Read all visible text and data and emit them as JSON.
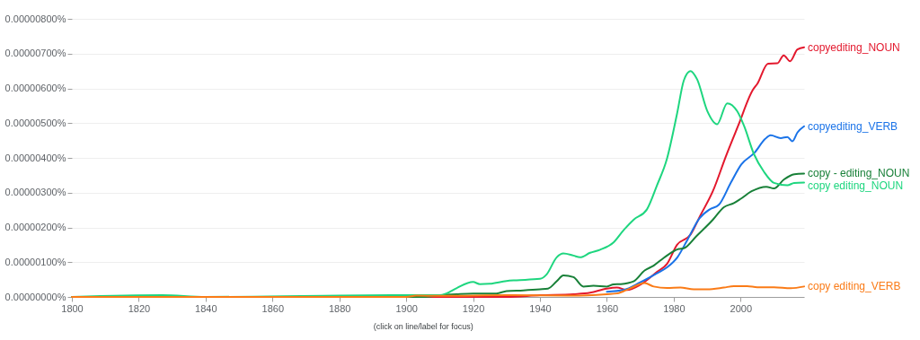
{
  "chart_data": {
    "type": "line",
    "annotations": [
      "(click on line/label for focus)"
    ],
    "xlim": [
      1800,
      2019
    ],
    "xticks": [
      1800,
      1820,
      1840,
      1860,
      1880,
      1900,
      1920,
      1940,
      1960,
      1980,
      2000
    ],
    "ylim": [
      0,
      8e-06
    ],
    "yticks": [
      {
        "value": 0,
        "label": "0.00000000%"
      },
      {
        "value": 1e-06,
        "label": "0.00000100%"
      },
      {
        "value": 2e-06,
        "label": "0.00000200%"
      },
      {
        "value": 3e-06,
        "label": "0.00000300%"
      },
      {
        "value": 4e-06,
        "label": "0.00000400%"
      },
      {
        "value": 5e-06,
        "label": "0.00000500%"
      },
      {
        "value": 6e-06,
        "label": "0.00000600%"
      },
      {
        "value": 7e-06,
        "label": "0.00000700%"
      },
      {
        "value": 8e-06,
        "label": "0.00000800%"
      }
    ],
    "grid": "y",
    "line_style": "solid",
    "marker": "none",
    "series": [
      {
        "name": "copyediting_NOUN",
        "color": "#e3182d",
        "x": [
          1800,
          1900,
          1930,
          1940,
          1950,
          1955,
          1960,
          1963,
          1966,
          1970,
          1975,
          1978,
          1981,
          1985,
          1988,
          1991.7,
          1995.7,
          1999.3,
          2003.7,
          2005,
          2008.2,
          2011,
          2012.9,
          2014.8,
          2017,
          2019
        ],
        "values": [
          0,
          0,
          0,
          5e-08,
          8e-08,
          1.2e-07,
          2.4e-07,
          2.7e-07,
          2e-07,
          3.5e-07,
          7.2e-07,
          9.5e-07,
          1.5e-06,
          1.79e-06,
          2.35e-06,
          3.04e-06,
          4.07e-06,
          4.93e-06,
          5.96e-06,
          6.13e-06,
          6.71e-06,
          6.72e-06,
          6.95e-06,
          6.78e-06,
          7.12e-06,
          7.18e-06
        ]
      },
      {
        "name": "copyediting_VERB",
        "color": "#1a73e8",
        "x": [
          1960,
          1965,
          1970,
          1975,
          1978,
          1981.1,
          1984.2,
          1987.7,
          1990.8,
          1993.5,
          1997.1,
          2000.2,
          2004.2,
          2007.3,
          2009,
          2012,
          2014,
          2015.5,
          2017,
          2019
        ],
        "values": [
          1.5e-07,
          2e-07,
          4.2e-07,
          6.8e-07,
          8.5e-07,
          1.14e-06,
          1.66e-06,
          2.26e-06,
          2.52e-06,
          2.65e-06,
          3.29e-06,
          3.81e-06,
          4.15e-06,
          4.54e-06,
          4.65e-06,
          4.57e-06,
          4.6e-06,
          4.48e-06,
          4.73e-06,
          4.91e-06
        ]
      },
      {
        "name": "copy - editing_NOUN",
        "color": "#188038",
        "x": [
          1800,
          1900,
          1905,
          1910,
          1915,
          1920,
          1927,
          1930,
          1935,
          1940,
          1942.4,
          1945,
          1947,
          1950,
          1953,
          1956,
          1960,
          1962,
          1964.2,
          1968,
          1971.3,
          1974,
          1977.1,
          1981.5,
          1983,
          1986.8,
          1991.7,
          1995,
          1998,
          2000,
          2003.3,
          2007.7,
          2010,
          2013,
          2016.1,
          2019
        ],
        "values": [
          0,
          0,
          0,
          5e-08,
          8e-08,
          1e-07,
          1e-07,
          1.7e-07,
          1.9e-07,
          2.2e-07,
          2.4e-07,
          4.5e-07,
          6.2e-07,
          5.7e-07,
          3e-07,
          3.2e-07,
          3e-07,
          3.6e-07,
          3.7e-07,
          4.5e-07,
          7.6e-07,
          9e-07,
          1.13e-06,
          1.38e-06,
          1.4e-06,
          1.75e-06,
          2.22e-06,
          2.58e-06,
          2.7e-06,
          2.82e-06,
          3.04e-06,
          3.17e-06,
          3.12e-06,
          3.38e-06,
          3.53e-06,
          3.55e-06
        ]
      },
      {
        "name": "copy editing_NOUN",
        "color": "#1ed67f",
        "x": [
          1800,
          1827,
          1840,
          1880,
          1900,
          1910,
          1912,
          1915,
          1920,
          1922,
          1925,
          1930,
          1933,
          1940,
          1942,
          1945,
          1947,
          1950,
          1952,
          1955,
          1958,
          1962,
          1965,
          1968,
          1972,
          1975,
          1978,
          1981,
          1983,
          1985,
          1987,
          1990,
          1993,
          1996,
          1999,
          2001,
          2004,
          2007,
          2010,
          2014,
          2016,
          2019
        ],
        "values": [
          0,
          5e-08,
          0,
          4e-08,
          5e-08,
          5e-08,
          1e-07,
          2.5e-07,
          4.3e-07,
          3.7e-07,
          3.8e-07,
          4.6e-07,
          4.8e-07,
          5.2e-07,
          6.5e-07,
          1.14e-06,
          1.25e-06,
          1.19e-06,
          1.14e-06,
          1.27e-06,
          1.36e-06,
          1.57e-06,
          1.92e-06,
          2.22e-06,
          2.52e-06,
          3.21e-06,
          3.98e-06,
          5.27e-06,
          6.22e-06,
          6.5e-06,
          6.26e-06,
          5.36e-06,
          4.97e-06,
          5.57e-06,
          5.34e-06,
          4.93e-06,
          4.11e-06,
          3.6e-06,
          3.28e-06,
          3.21e-06,
          3.28e-06,
          3.29e-06
        ]
      },
      {
        "name": "copy editing_VERB",
        "color": "#fa7b17",
        "x": [
          1800,
          1900,
          1903,
          1910,
          1930,
          1950,
          1960,
          1963,
          1967,
          1971.3,
          1974,
          1978,
          1982,
          1986,
          1990,
          1995,
          1998,
          2002,
          2005,
          2010,
          2015,
          2019
        ],
        "values": [
          0,
          0,
          4e-08,
          3e-08,
          5e-08,
          4e-08,
          8e-08,
          1e-07,
          2.5e-07,
          4e-07,
          3e-07,
          2.6e-07,
          2.7e-07,
          2.2e-07,
          2.2e-07,
          2.7e-07,
          3.1e-07,
          3.1e-07,
          2.8e-07,
          2.8e-07,
          2.5e-07,
          3e-07
        ]
      }
    ]
  }
}
